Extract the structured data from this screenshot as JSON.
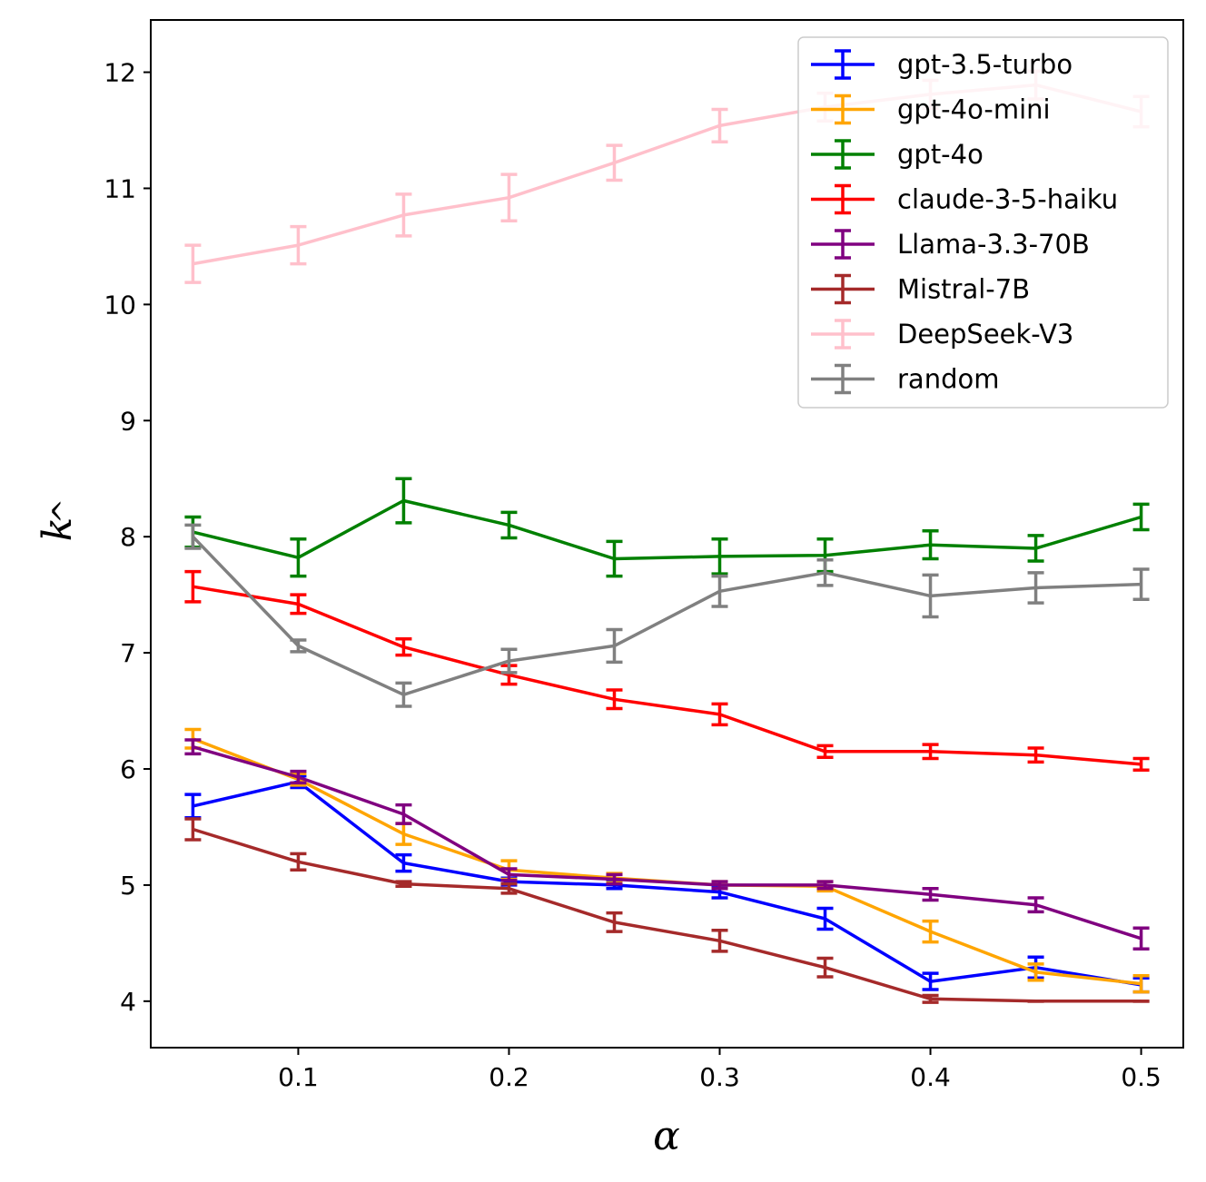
{
  "chart_data": {
    "type": "line",
    "title": "",
    "xlabel": "α",
    "ylabel": "k",
    "ylabel_accent": "^",
    "xlim": [
      0.03,
      0.52
    ],
    "ylim": [
      3.6,
      12.45
    ],
    "xticks": [
      0.1,
      0.2,
      0.3,
      0.4,
      0.5
    ],
    "xtick_labels": [
      "0.1",
      "0.2",
      "0.3",
      "0.4",
      "0.5"
    ],
    "yticks": [
      4,
      5,
      6,
      7,
      8,
      9,
      10,
      11,
      12
    ],
    "ytick_labels": [
      "4",
      "5",
      "6",
      "7",
      "8",
      "9",
      "10",
      "11",
      "12"
    ],
    "grid": false,
    "legend_position": "top-right",
    "x": [
      0.05,
      0.1,
      0.15,
      0.2,
      0.25,
      0.3,
      0.35,
      0.4,
      0.45,
      0.5
    ],
    "series": [
      {
        "name": "gpt-3.5-turbo",
        "color": "#0000ff",
        "values": [
          5.68,
          5.89,
          5.19,
          5.03,
          5.0,
          4.94,
          4.71,
          4.17,
          4.29,
          4.14
        ],
        "errors": [
          0.1,
          0.05,
          0.07,
          0.03,
          0.03,
          0.05,
          0.09,
          0.07,
          0.09,
          0.06
        ]
      },
      {
        "name": "gpt-4o-mini",
        "color": "#ffa500",
        "values": [
          6.26,
          5.91,
          5.44,
          5.13,
          5.06,
          5.0,
          4.99,
          4.6,
          4.25,
          4.15
        ],
        "errors": [
          0.08,
          0.05,
          0.09,
          0.08,
          0.04,
          0.03,
          0.04,
          0.09,
          0.07,
          0.07
        ]
      },
      {
        "name": "gpt-4o",
        "color": "#008000",
        "values": [
          8.04,
          7.82,
          8.31,
          8.1,
          7.81,
          7.83,
          7.84,
          7.93,
          7.9,
          8.17
        ],
        "errors": [
          0.13,
          0.16,
          0.19,
          0.11,
          0.15,
          0.15,
          0.14,
          0.12,
          0.11,
          0.11
        ]
      },
      {
        "name": "claude-3-5-haiku",
        "color": "#ff0000",
        "values": [
          7.57,
          7.42,
          7.05,
          6.81,
          6.6,
          6.47,
          6.15,
          6.15,
          6.12,
          6.04
        ],
        "errors": [
          0.13,
          0.08,
          0.07,
          0.08,
          0.08,
          0.09,
          0.05,
          0.06,
          0.06,
          0.05
        ]
      },
      {
        "name": "Llama-3.3-70B",
        "color": "#800080",
        "values": [
          6.19,
          5.93,
          5.61,
          5.09,
          5.05,
          5.0,
          5.0,
          4.92,
          4.83,
          4.54
        ],
        "errors": [
          0.06,
          0.05,
          0.08,
          0.05,
          0.04,
          0.03,
          0.03,
          0.05,
          0.06,
          0.09
        ]
      },
      {
        "name": "Mistral-7B",
        "color": "#a52a2a",
        "values": [
          5.48,
          5.2,
          5.01,
          4.97,
          4.68,
          4.52,
          4.29,
          4.02,
          4.0,
          4.0
        ],
        "errors": [
          0.09,
          0.07,
          0.02,
          0.04,
          0.08,
          0.09,
          0.08,
          0.03,
          0.0,
          0.0
        ]
      },
      {
        "name": "DeepSeek-V3",
        "color": "#ffc0cb",
        "values": [
          10.35,
          10.51,
          10.77,
          10.92,
          11.22,
          11.54,
          11.7,
          11.81,
          11.89,
          11.66
        ],
        "errors": [
          0.16,
          0.16,
          0.18,
          0.2,
          0.15,
          0.14,
          0.12,
          0.12,
          0.12,
          0.13
        ]
      },
      {
        "name": "random",
        "color": "#808080",
        "values": [
          8.0,
          7.06,
          6.64,
          6.93,
          7.06,
          7.53,
          7.69,
          7.49,
          7.56,
          7.59
        ],
        "errors": [
          0.1,
          0.05,
          0.1,
          0.1,
          0.14,
          0.13,
          0.11,
          0.18,
          0.13,
          0.13
        ]
      }
    ]
  }
}
